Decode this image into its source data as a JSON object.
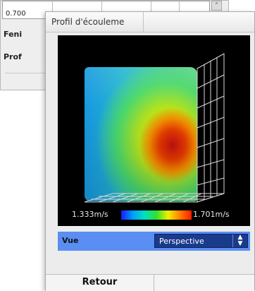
{
  "background_window": {
    "table_value": "0.700",
    "scroll_glyph": "⌃",
    "label_1": "Feni",
    "label_2": "Prof"
  },
  "dialog": {
    "title": "Profil d'écouleme",
    "legend": {
      "min_label": "1.333m/s",
      "max_label": "1.701m/s"
    },
    "view_row": {
      "label": "Vue",
      "selected": "Perspective",
      "arrows": "▲\n▼"
    },
    "buttons": {
      "back": "Retour",
      "secondary": ""
    }
  },
  "colors": {
    "view_row_bg": "#5a8ef2",
    "select_bg": "#1a3a8c",
    "viewport_bg": "#000000"
  }
}
